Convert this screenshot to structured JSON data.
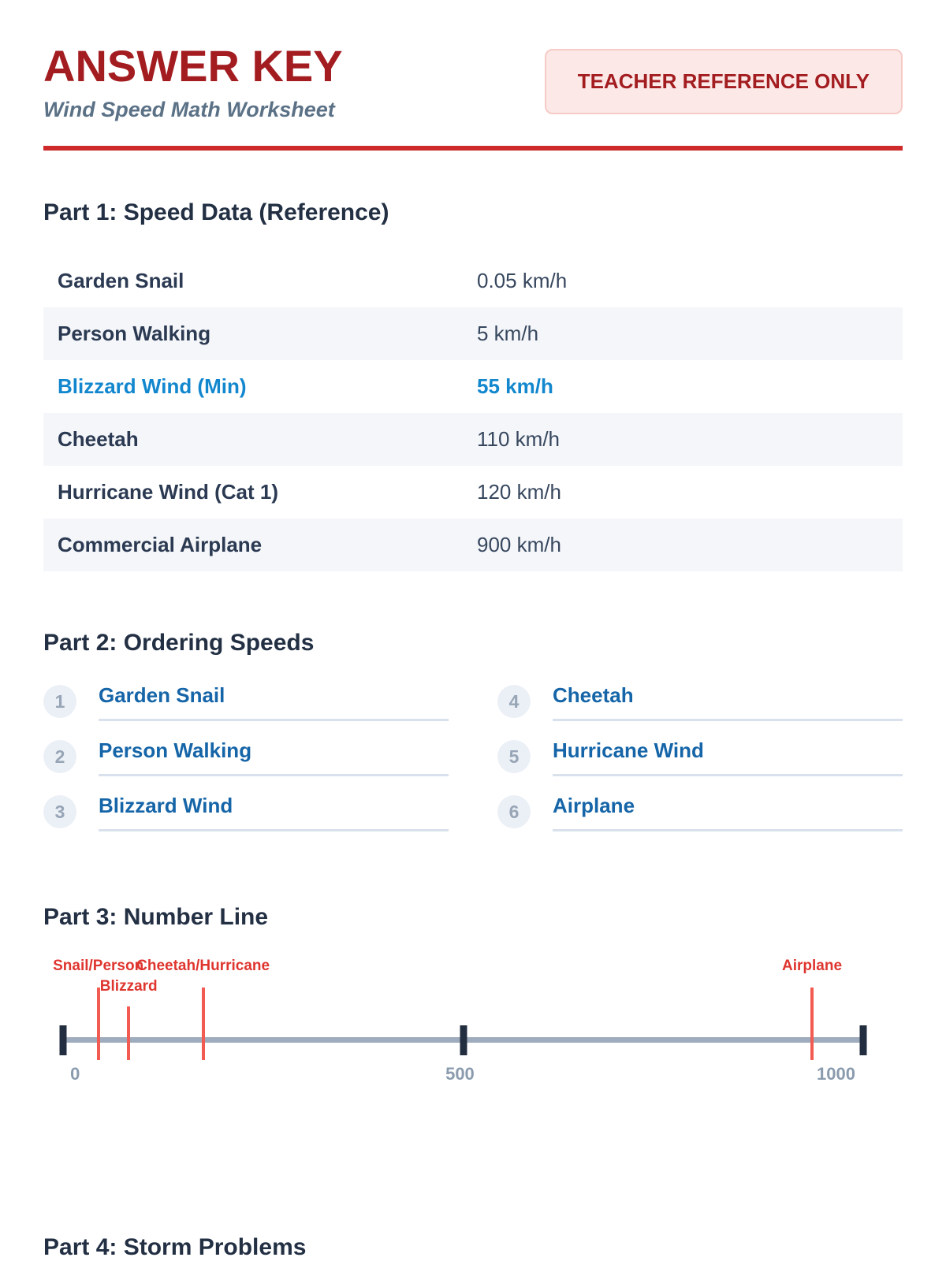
{
  "header": {
    "title": "ANSWER KEY",
    "subtitle": "Wind Speed Math Worksheet",
    "badge": "TEACHER REFERENCE ONLY"
  },
  "colors": {
    "brand_red": "#A31C20",
    "rule_red": "#CE2A2C",
    "badge_bg": "#FCE9E7",
    "badge_border": "#F6CAC5",
    "subtitle_slate": "#5B7186",
    "heading_navy": "#233044",
    "row_alt": "#F4F6F9",
    "highlight_blue": "#1287CE",
    "answer_blue": "#1565A8",
    "circle_bg": "#EBF0F6",
    "circle_num": "#97A5B6",
    "underline": "#D9E2EC",
    "line_gray": "#9FACBE",
    "tick_navy": "#222E40",
    "marker_line_red": "#F25B51",
    "marker_label_red": "#DF352F",
    "axis_gray": "#8A9BAE"
  },
  "part1": {
    "heading": "Part 1: Speed Data (Reference)",
    "rows": [
      {
        "label": "Garden Snail",
        "value": "0.05 km/h",
        "highlight": false
      },
      {
        "label": "Person Walking",
        "value": "5 km/h",
        "highlight": false
      },
      {
        "label": "Blizzard Wind (Min)",
        "value": "55 km/h",
        "highlight": true
      },
      {
        "label": "Cheetah",
        "value": "110 km/h",
        "highlight": false
      },
      {
        "label": "Hurricane Wind (Cat 1)",
        "value": "120 km/h",
        "highlight": false
      },
      {
        "label": "Commercial Airplane",
        "value": "900 km/h",
        "highlight": false
      }
    ]
  },
  "part2": {
    "heading": "Part 2: Ordering Speeds",
    "items": [
      {
        "num": "1",
        "answer": "Garden Snail"
      },
      {
        "num": "2",
        "answer": "Person Walking"
      },
      {
        "num": "3",
        "answer": "Blizzard Wind"
      },
      {
        "num": "4",
        "answer": "Cheetah"
      },
      {
        "num": "5",
        "answer": "Hurricane Wind"
      },
      {
        "num": "6",
        "answer": "Airplane"
      }
    ]
  },
  "part3": {
    "heading": "Part 3: Number Line",
    "axis_range": [
      0,
      1000
    ],
    "axis_ticks": [
      {
        "label": "0",
        "pos": 1.5
      },
      {
        "label": "500",
        "pos": 49.6
      },
      {
        "label": "1000",
        "pos": 96.6
      }
    ],
    "markers": [
      {
        "label": "Snail/Person",
        "pos": 4.4,
        "row": 1
      },
      {
        "label": "Blizzard",
        "pos": 8.2,
        "row": 2
      },
      {
        "label": "Cheetah/Hurricane",
        "pos": 17.5,
        "row": 1
      },
      {
        "label": "Airplane",
        "pos": 93.6,
        "row": 1
      }
    ]
  },
  "part4": {
    "heading": "Part 4: Storm Problems"
  }
}
